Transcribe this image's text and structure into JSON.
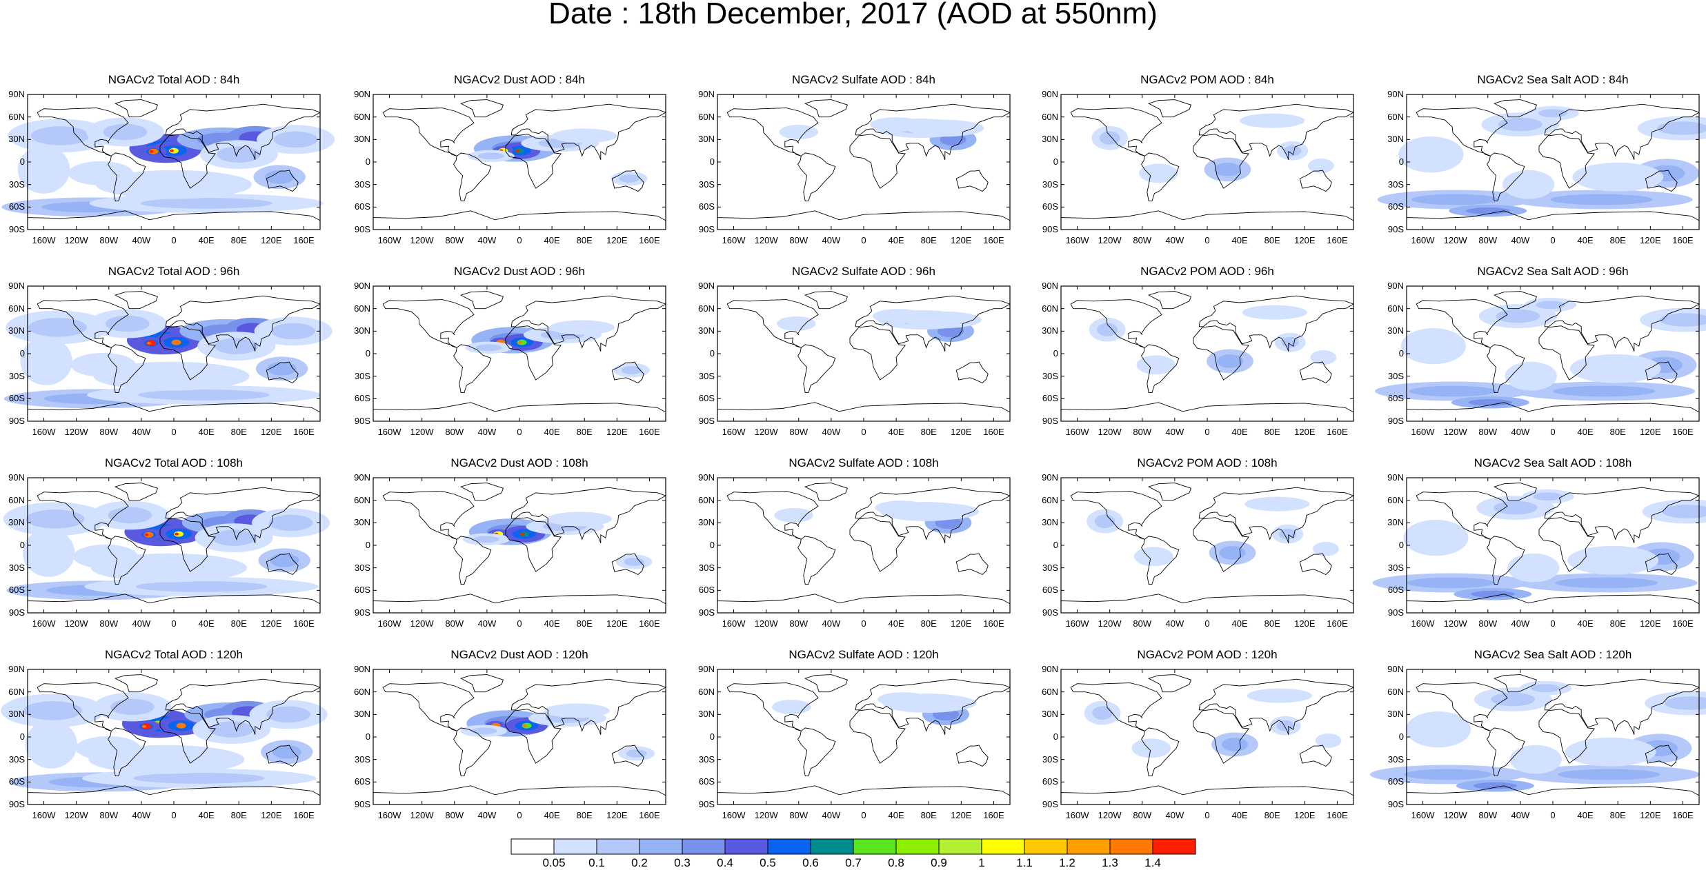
{
  "title": "Date : 18th December, 2017 (AOD at 550nm)",
  "lat_ticks": [
    "90N",
    "60N",
    "30N",
    "0",
    "30S",
    "60S",
    "90S"
  ],
  "lon_ticks": [
    "160W",
    "120W",
    "80W",
    "40W",
    "0",
    "40E",
    "80E",
    "120E",
    "160E"
  ],
  "columns": [
    "total",
    "dust",
    "sulfate",
    "pom",
    "seasalt"
  ],
  "rows": [
    "84h",
    "96h",
    "108h",
    "120h"
  ],
  "panels": [
    [
      "NGACv2 Total AOD : 84h",
      "NGACv2 Dust AOD : 84h",
      "NGACv2 Sulfate AOD : 84h",
      "NGACv2 POM AOD : 84h",
      "NGACv2 Sea Salt AOD : 84h"
    ],
    [
      "NGACv2 Total AOD : 96h",
      "NGACv2 Dust AOD : 96h",
      "NGACv2 Sulfate AOD : 96h",
      "NGACv2 POM AOD : 96h",
      "NGACv2 Sea Salt AOD : 96h"
    ],
    [
      "NGACv2 Total AOD : 108h",
      "NGACv2 Dust AOD : 108h",
      "NGACv2 Sulfate AOD : 108h",
      "NGACv2 POM AOD : 108h",
      "NGACv2 Sea Salt AOD : 108h"
    ],
    [
      "NGACv2 Total AOD : 120h",
      "NGACv2 Dust AOD : 120h",
      "NGACv2 Sulfate AOD : 120h",
      "NGACv2 POM AOD : 120h",
      "NGACv2 Sea Salt  AOD : 120h"
    ]
  ],
  "colorbar": {
    "labels": [
      "0.05",
      "0.1",
      "0.2",
      "0.3",
      "0.4",
      "0.5",
      "0.6",
      "0.7",
      "0.8",
      "0.9",
      "1",
      "1.1",
      "1.2",
      "1.3",
      "1.4"
    ],
    "colors": [
      "#ffffff",
      "#d2e1ff",
      "#b4c8fa",
      "#96b4f5",
      "#7891eb",
      "#5a5ae1",
      "#0a64f0",
      "#008c8c",
      "#5ae61e",
      "#8cf000",
      "#b4f032",
      "#ffff00",
      "#ffc800",
      "#ffa000",
      "#ff7800",
      "#ff1e00"
    ]
  }
}
